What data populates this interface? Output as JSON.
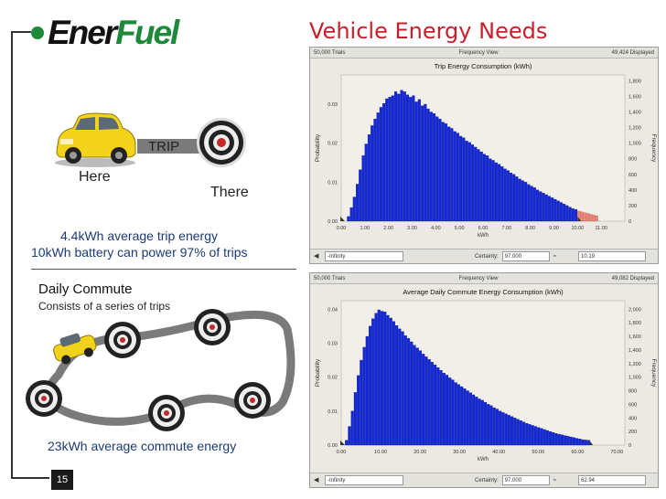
{
  "brand": {
    "ener": "Ener",
    "fuel": "Fuel"
  },
  "title": "Vehicle Energy Needs",
  "trip": {
    "label": "TRIP",
    "here": "Here",
    "there": "There",
    "stat1": "4.4kWh average trip energy",
    "stat2": "10kWh battery can power 97% of trips"
  },
  "commute": {
    "title": "Daily Commute",
    "subtitle": "Consists of a series of trips",
    "stat": "23kWh average commute energy"
  },
  "page_number": "15",
  "colors": {
    "accent_red": "#c8202a",
    "brand_green": "#1c8a3a",
    "bar_blue": "#1428d8",
    "bar_red": "#e8877a",
    "stat_text": "#1b3a78"
  },
  "chart_data": [
    {
      "type": "bar",
      "trials": "50,000 Trials",
      "view": "Frequency View",
      "displayed": "49,424 Displayed",
      "title": "Trip Energy Consumption (kWh)",
      "ylabel": "Probability",
      "y2label": "Frequency",
      "xlim": [
        0,
        12
      ],
      "ylim": [
        0,
        0.0375
      ],
      "y2lim": [
        0,
        1875
      ],
      "xticks": [
        "0.00",
        "1.00",
        "2.00",
        "3.00",
        "4.00",
        "5.00",
        "6.00",
        "7.00",
        "8.00",
        "9.00",
        "10.00",
        "11.00"
      ],
      "yticks": [
        "0.00",
        "0.01",
        "0.02",
        "0.03"
      ],
      "y2ticks": [
        "0",
        "200",
        "400",
        "600",
        "800",
        "1,000",
        "1,200",
        "1,400",
        "1,600",
        "1,800"
      ],
      "xlabel": "kWh",
      "bin_start": 0.25,
      "bin_width": 0.125,
      "threshold": 10.0,
      "probabilities": [
        0.0012,
        0.0035,
        0.0062,
        0.0095,
        0.0132,
        0.0168,
        0.0198,
        0.0222,
        0.0245,
        0.0262,
        0.0278,
        0.0292,
        0.0302,
        0.0314,
        0.0318,
        0.0322,
        0.0332,
        0.0326,
        0.0336,
        0.0332,
        0.0324,
        0.0318,
        0.0322,
        0.0306,
        0.0312,
        0.0296,
        0.03,
        0.0288,
        0.028,
        0.0276,
        0.0268,
        0.0262,
        0.0254,
        0.025,
        0.0242,
        0.0238,
        0.023,
        0.0226,
        0.0218,
        0.0214,
        0.0206,
        0.0202,
        0.0196,
        0.019,
        0.0184,
        0.0178,
        0.0172,
        0.0168,
        0.016,
        0.0156,
        0.015,
        0.0146,
        0.014,
        0.0134,
        0.013,
        0.0124,
        0.012,
        0.0114,
        0.0108,
        0.0104,
        0.01,
        0.0094,
        0.009,
        0.0086,
        0.008,
        0.0076,
        0.0072,
        0.0068,
        0.0064,
        0.006,
        0.0056,
        0.0052,
        0.0048,
        0.0044,
        0.004,
        0.0036,
        0.0032,
        0.003,
        0.0026,
        0.0024,
        0.0022,
        0.002,
        0.0018,
        0.0016,
        0.0014
      ],
      "certainty_label": "Certainty:",
      "certainty": "97.000",
      "left_field": "-Infinity",
      "right_field": "10.19"
    },
    {
      "type": "bar",
      "trials": "50,000 Trials",
      "view": "Frequency View",
      "displayed": "49,082 Displayed",
      "title": "Average Daily Commute Energy Consumption (kWh)",
      "ylabel": "Probability",
      "y2label": "Frequency",
      "xlim": [
        0,
        72
      ],
      "ylim": [
        0,
        0.0425
      ],
      "y2lim": [
        0,
        2125
      ],
      "xticks": [
        "0.00",
        "10.00",
        "20.00",
        "30.00",
        "40.00",
        "50.00",
        "60.00",
        "70.00"
      ],
      "yticks": [
        "0.00",
        "0.01",
        "0.02",
        "0.03",
        "0.04"
      ],
      "y2ticks": [
        "0",
        "200",
        "400",
        "600",
        "800",
        "1,000",
        "1,200",
        "1,400",
        "1,600",
        "1,800",
        "2,000"
      ],
      "xlabel": "kWh",
      "bin_start": 1.0,
      "bin_width": 0.75,
      "threshold": 63.0,
      "probabilities": [
        0.0014,
        0.0055,
        0.01,
        0.0155,
        0.0205,
        0.025,
        0.0288,
        0.032,
        0.035,
        0.0372,
        0.0388,
        0.0398,
        0.0394,
        0.0392,
        0.0382,
        0.0374,
        0.0364,
        0.0352,
        0.0342,
        0.0334,
        0.0322,
        0.0314,
        0.0304,
        0.0294,
        0.0286,
        0.0278,
        0.0268,
        0.026,
        0.0252,
        0.0244,
        0.0236,
        0.0228,
        0.022,
        0.0212,
        0.0206,
        0.0198,
        0.0192,
        0.0184,
        0.0178,
        0.0172,
        0.0166,
        0.016,
        0.0154,
        0.0148,
        0.0142,
        0.0136,
        0.0132,
        0.0126,
        0.012,
        0.0116,
        0.011,
        0.0106,
        0.01,
        0.0096,
        0.0092,
        0.0088,
        0.0084,
        0.008,
        0.0076,
        0.0072,
        0.0068,
        0.0064,
        0.0061,
        0.0058,
        0.0055,
        0.0052,
        0.0049,
        0.0046,
        0.0043,
        0.004,
        0.0037,
        0.0034,
        0.0032,
        0.003,
        0.0028,
        0.0026,
        0.0024,
        0.0022,
        0.002,
        0.0018,
        0.0016,
        0.0015,
        0.0014
      ],
      "certainty_label": "Certainty:",
      "certainty": "97.000",
      "left_field": "-Infinity",
      "right_field": "62.94"
    }
  ]
}
